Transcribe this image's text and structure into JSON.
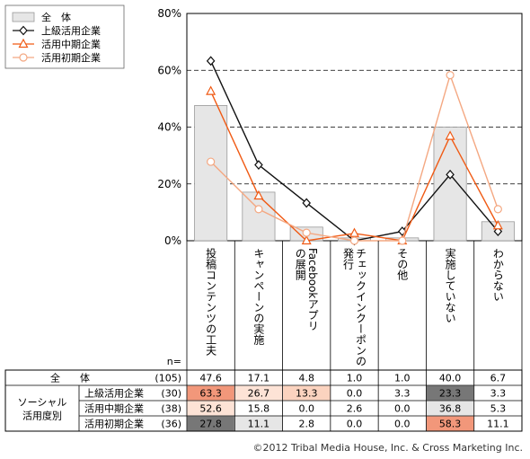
{
  "chart_data": {
    "type": "bar+line",
    "categories": [
      "投稿コンテンツの工夫",
      "キャンペーンの実施",
      "Facebookアプリの展開",
      "チェックインクーポンの発行",
      "その他",
      "実施していない",
      "わからない"
    ],
    "ylim": [
      0,
      80
    ],
    "yticks": [
      "0%",
      "20%",
      "40%",
      "60%",
      "80%"
    ],
    "grid": "dashed horizontal at 20%, 40%, 60%",
    "legend_position": "top-left",
    "bar_series": {
      "name": "全　体",
      "values": [
        47.6,
        17.1,
        4.8,
        1.0,
        1.0,
        40.0,
        6.7
      ],
      "color": "#e6e6e6"
    },
    "line_series": [
      {
        "name": "上級活用企業",
        "values": [
          63.3,
          26.7,
          13.3,
          0.0,
          3.3,
          23.3,
          3.3
        ],
        "color": "#111111",
        "marker": "diamond"
      },
      {
        "name": "活用中期企業",
        "values": [
          52.6,
          15.8,
          0.0,
          2.6,
          0.0,
          36.8,
          5.3
        ],
        "color": "#f05a14",
        "marker": "triangle"
      },
      {
        "name": "活用初期企業",
        "values": [
          27.8,
          11.1,
          2.8,
          0.0,
          0.0,
          58.3,
          11.1
        ],
        "color": "#f4a882",
        "marker": "circle"
      }
    ]
  },
  "table": {
    "n_label": "n=",
    "group_label": "ソーシャル活用度別",
    "rows": [
      {
        "label": "全　　体",
        "n": "(105)",
        "values": [
          "47.6",
          "17.1",
          "4.8",
          "1.0",
          "1.0",
          "40.0",
          "6.7"
        ]
      },
      {
        "label": "上級活用企業",
        "n": "(30)",
        "values": [
          "63.3",
          "26.7",
          "13.3",
          "0.0",
          "3.3",
          "23.3",
          "3.3"
        ]
      },
      {
        "label": "活用中期企業",
        "n": "(38)",
        "values": [
          "52.6",
          "15.8",
          "0.0",
          "2.6",
          "0.0",
          "36.8",
          "5.3"
        ]
      },
      {
        "label": "活用初期企業",
        "n": "(36)",
        "values": [
          "27.8",
          "11.1",
          "2.8",
          "0.0",
          "0.0",
          "58.3",
          "11.1"
        ]
      }
    ],
    "highlights": {
      "1": {
        "0": "#f2977a",
        "1": "#fde3d6",
        "2": "#fbd3bf",
        "5": "#777777"
      },
      "2": {
        "0": "#fde3d6",
        "5": "#e6e6e6"
      },
      "3": {
        "0": "#777777",
        "1": "#e6e6e6",
        "5": "#f2977a"
      }
    }
  },
  "copyright": "©2012 Tribal Media House, Inc. & Cross Marketing Inc."
}
